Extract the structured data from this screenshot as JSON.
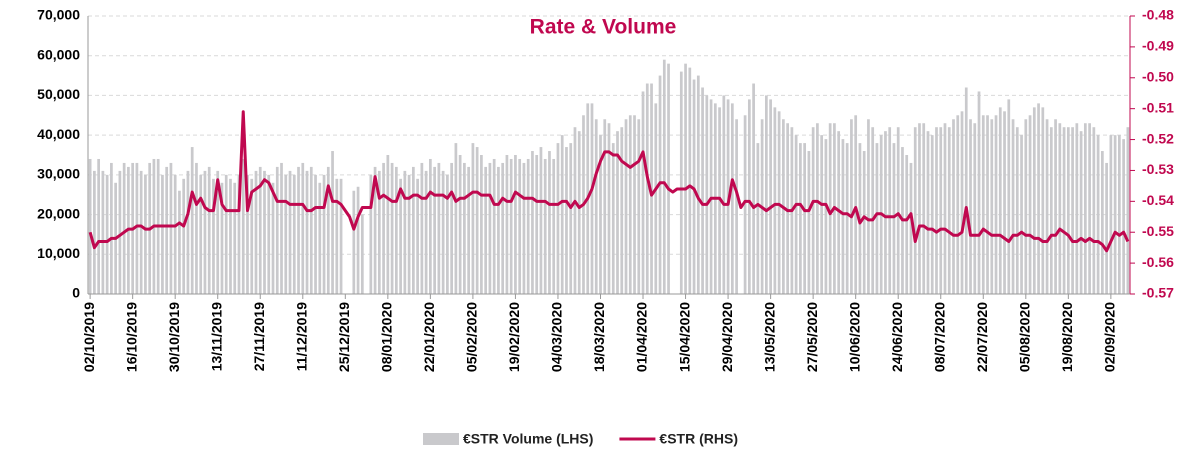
{
  "chart_data": {
    "type": "bar_line",
    "title": "Rate & Volume",
    "categories": [
      "02/10/2019",
      null,
      null,
      null,
      null,
      null,
      null,
      null,
      null,
      null,
      "16/10/2019",
      null,
      null,
      null,
      null,
      null,
      null,
      null,
      null,
      null,
      "30/10/2019",
      null,
      null,
      null,
      null,
      null,
      null,
      null,
      null,
      null,
      "13/11/2019",
      null,
      null,
      null,
      null,
      null,
      null,
      null,
      null,
      null,
      "27/11/2019",
      null,
      null,
      null,
      null,
      null,
      null,
      null,
      null,
      null,
      "11/12/2019",
      null,
      null,
      null,
      null,
      null,
      null,
      null,
      null,
      null,
      "25/12/2019",
      null,
      null,
      null,
      null,
      null,
      null,
      null,
      null,
      null,
      "08/01/2020",
      null,
      null,
      null,
      null,
      null,
      null,
      null,
      null,
      null,
      "22/01/2020",
      null,
      null,
      null,
      null,
      null,
      null,
      null,
      null,
      null,
      "05/02/2020",
      null,
      null,
      null,
      null,
      null,
      null,
      null,
      null,
      null,
      "19/02/2020",
      null,
      null,
      null,
      null,
      null,
      null,
      null,
      null,
      null,
      "04/03/2020",
      null,
      null,
      null,
      null,
      null,
      null,
      null,
      null,
      null,
      "18/03/2020",
      null,
      null,
      null,
      null,
      null,
      null,
      null,
      null,
      null,
      "01/04/2020",
      null,
      null,
      null,
      null,
      null,
      null,
      null,
      null,
      null,
      "15/04/2020",
      null,
      null,
      null,
      null,
      null,
      null,
      null,
      null,
      null,
      "29/04/2020",
      null,
      null,
      null,
      null,
      null,
      null,
      null,
      null,
      null,
      "13/05/2020",
      null,
      null,
      null,
      null,
      null,
      null,
      null,
      null,
      null,
      "27/05/2020",
      null,
      null,
      null,
      null,
      null,
      null,
      null,
      null,
      null,
      "10/06/2020",
      null,
      null,
      null,
      null,
      null,
      null,
      null,
      null,
      null,
      "24/06/2020",
      null,
      null,
      null,
      null,
      null,
      null,
      null,
      null,
      null,
      "08/07/2020",
      null,
      null,
      null,
      null,
      null,
      null,
      null,
      null,
      null,
      "22/07/2020",
      null,
      null,
      null,
      null,
      null,
      null,
      null,
      null,
      null,
      "05/08/2020",
      null,
      null,
      null,
      null,
      null,
      null,
      null,
      null,
      null,
      "19/08/2020",
      null,
      null,
      null,
      null,
      null,
      null,
      null,
      null,
      null,
      "02/09/2020",
      null,
      null,
      null,
      null
    ],
    "series": [
      {
        "name": "€STR Volume (LHS)",
        "type": "bar",
        "axis": "y",
        "color": "#c9c9cc",
        "values": [
          34000,
          31000,
          34000,
          31000,
          30000,
          33000,
          28000,
          31000,
          33000,
          32000,
          33000,
          33000,
          31000,
          30000,
          33000,
          34000,
          34000,
          30000,
          32000,
          33000,
          30000,
          26000,
          29000,
          31000,
          37000,
          33000,
          30000,
          31000,
          32000,
          29000,
          31000,
          28000,
          30000,
          29000,
          28000,
          30000,
          34000,
          30000,
          29000,
          31000,
          32000,
          31000,
          30000,
          28000,
          32000,
          33000,
          30000,
          31000,
          30000,
          32000,
          33000,
          31000,
          32000,
          30000,
          28000,
          30000,
          32000,
          36000,
          29000,
          29000,
          null,
          null,
          26000,
          27000,
          20000,
          null,
          30000,
          32000,
          31000,
          33000,
          35000,
          33000,
          32000,
          29000,
          31000,
          30000,
          32000,
          29000,
          33000,
          31000,
          34000,
          32000,
          33000,
          31000,
          30000,
          33000,
          38000,
          35000,
          33000,
          32000,
          38000,
          37000,
          35000,
          32000,
          33000,
          34000,
          32000,
          33000,
          35000,
          34000,
          35000,
          34000,
          33000,
          34000,
          36000,
          35000,
          37000,
          34000,
          36000,
          34000,
          38000,
          40000,
          37000,
          38000,
          42000,
          41000,
          45000,
          48000,
          48000,
          44000,
          40000,
          44000,
          43000,
          38000,
          41000,
          42000,
          44000,
          45000,
          45000,
          44000,
          51000,
          53000,
          53000,
          48000,
          55000,
          59000,
          58000,
          null,
          null,
          56000,
          58000,
          57000,
          54000,
          55000,
          52000,
          50000,
          49000,
          48000,
          47000,
          50000,
          49000,
          48000,
          44000,
          null,
          45000,
          49000,
          53000,
          38000,
          44000,
          50000,
          49000,
          47000,
          46000,
          44000,
          43000,
          42000,
          40000,
          38000,
          38000,
          36000,
          42000,
          43000,
          40000,
          39000,
          43000,
          43000,
          41000,
          39000,
          38000,
          44000,
          45000,
          38000,
          36000,
          44000,
          42000,
          38000,
          40000,
          41000,
          42000,
          38000,
          42000,
          37000,
          35000,
          33000,
          42000,
          43000,
          43000,
          41000,
          40000,
          42000,
          42000,
          43000,
          42000,
          44000,
          45000,
          46000,
          52000,
          44000,
          43000,
          51000,
          45000,
          45000,
          44000,
          45000,
          47000,
          46000,
          49000,
          44000,
          42000,
          40000,
          44000,
          45000,
          47000,
          48000,
          47000,
          44000,
          42000,
          44000,
          43000,
          42000,
          42000,
          42000,
          43000,
          41000,
          43000,
          43000,
          42000,
          40000,
          36000,
          33000,
          40000,
          40000,
          40000,
          39000,
          42000
        ]
      },
      {
        "name": "€STR (RHS)",
        "type": "line",
        "axis": "y2",
        "color": "#c0084f",
        "values": [
          -0.55,
          -0.555,
          -0.553,
          -0.553,
          -0.553,
          -0.552,
          -0.552,
          -0.551,
          -0.55,
          -0.549,
          -0.549,
          -0.548,
          -0.548,
          -0.549,
          -0.549,
          -0.548,
          -0.548,
          -0.548,
          -0.548,
          -0.548,
          -0.548,
          -0.547,
          -0.548,
          -0.544,
          -0.537,
          -0.541,
          -0.539,
          -0.542,
          -0.543,
          -0.543,
          -0.533,
          -0.541,
          -0.543,
          -0.543,
          -0.543,
          -0.543,
          -0.511,
          -0.543,
          -0.537,
          -0.536,
          -0.535,
          -0.533,
          -0.534,
          -0.537,
          -0.54,
          -0.54,
          -0.54,
          -0.541,
          -0.541,
          -0.541,
          -0.541,
          -0.543,
          -0.543,
          -0.542,
          -0.542,
          -0.542,
          -0.535,
          -0.54,
          -0.54,
          -0.541,
          -0.543,
          -0.545,
          -0.549,
          -0.545,
          -0.542,
          -0.542,
          -0.542,
          -0.532,
          -0.539,
          -0.538,
          -0.539,
          -0.54,
          -0.54,
          -0.536,
          -0.539,
          -0.539,
          -0.538,
          -0.538,
          -0.539,
          -0.539,
          -0.537,
          -0.538,
          -0.538,
          -0.538,
          -0.539,
          -0.537,
          -0.54,
          -0.539,
          -0.539,
          -0.538,
          -0.537,
          -0.537,
          -0.538,
          -0.538,
          -0.538,
          -0.541,
          -0.541,
          -0.539,
          -0.54,
          -0.54,
          -0.537,
          -0.538,
          -0.539,
          -0.539,
          -0.539,
          -0.54,
          -0.54,
          -0.54,
          -0.541,
          -0.541,
          -0.541,
          -0.54,
          -0.54,
          -0.542,
          -0.54,
          -0.542,
          -0.541,
          -0.539,
          -0.536,
          -0.531,
          -0.527,
          -0.524,
          -0.524,
          -0.525,
          -0.525,
          -0.527,
          -0.528,
          -0.529,
          -0.528,
          -0.527,
          -0.524,
          -0.532,
          -0.538,
          -0.536,
          -0.534,
          -0.534,
          -0.536,
          -0.537,
          -0.536,
          -0.536,
          -0.536,
          -0.535,
          -0.536,
          -0.539,
          -0.541,
          -0.541,
          -0.539,
          -0.539,
          -0.539,
          -0.541,
          -0.541,
          -0.533,
          -0.537,
          -0.542,
          -0.54,
          -0.54,
          -0.542,
          -0.541,
          -0.542,
          -0.543,
          -0.542,
          -0.541,
          -0.541,
          -0.542,
          -0.543,
          -0.543,
          -0.541,
          -0.541,
          -0.543,
          -0.543,
          -0.54,
          -0.54,
          -0.541,
          -0.541,
          -0.544,
          -0.542,
          -0.543,
          -0.544,
          -0.544,
          -0.545,
          -0.542,
          -0.547,
          -0.545,
          -0.546,
          -0.546,
          -0.544,
          -0.544,
          -0.545,
          -0.545,
          -0.545,
          -0.544,
          -0.546,
          -0.546,
          -0.544,
          -0.553,
          -0.548,
          -0.548,
          -0.549,
          -0.549,
          -0.55,
          -0.549,
          -0.549,
          -0.55,
          -0.551,
          -0.551,
          -0.55,
          -0.542,
          -0.551,
          -0.551,
          -0.551,
          -0.549,
          -0.55,
          -0.551,
          -0.551,
          -0.551,
          -0.552,
          -0.553,
          -0.551,
          -0.551,
          -0.55,
          -0.551,
          -0.551,
          -0.552,
          -0.552,
          -0.553,
          -0.553,
          -0.551,
          -0.551,
          -0.549,
          -0.55,
          -0.551,
          -0.553,
          -0.553,
          -0.552,
          -0.553,
          -0.552,
          -0.553,
          -0.553,
          -0.554,
          -0.556,
          -0.553,
          -0.55,
          -0.551,
          -0.55,
          -0.553
        ]
      }
    ],
    "ylim": [
      0,
      70000
    ],
    "yticks": [
      0,
      {
        "value": 10000,
        "label": "10,000"
      },
      {
        "value": 20000,
        "label": "20,000"
      },
      {
        "value": 30000,
        "label": "30,000"
      },
      {
        "value": 40000,
        "label": "40,000"
      },
      {
        "value": 50000,
        "label": "50,000"
      },
      {
        "value": 60000,
        "label": "60,000"
      },
      {
        "value": 70000,
        "label": "70,000"
      }
    ],
    "y2lim": [
      -0.57,
      -0.48
    ],
    "y2ticks": [
      -0.57,
      -0.56,
      -0.55,
      -0.54,
      -0.53,
      -0.52,
      -0.51,
      {
        "value": -0.5,
        "label": "-0.50"
      },
      -0.49,
      -0.48
    ],
    "grid": true,
    "legend": "bottom"
  }
}
